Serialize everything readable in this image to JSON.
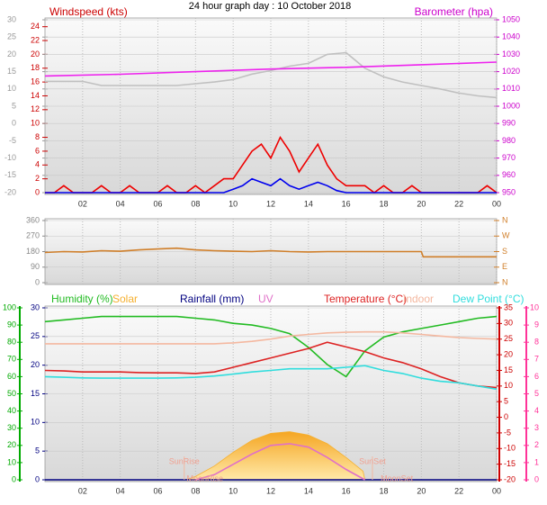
{
  "chart_data": [
    {
      "type": "line",
      "title": "24 hour graph day : 10 October 2018",
      "xlim": [
        0,
        24
      ],
      "xticks": [
        {
          "value": 2,
          "label": "02"
        },
        {
          "value": 4,
          "label": "04"
        },
        {
          "value": 6,
          "label": "06"
        },
        {
          "value": 8,
          "label": "08"
        },
        10,
        12,
        14,
        16,
        18,
        20,
        22,
        {
          "value": 24,
          "label": "00"
        }
      ],
      "xtick_labels": true,
      "axes": {
        "y": {
          "label": "Windspeed (kts)",
          "lim": [
            0,
            25
          ],
          "ticks": [
            0,
            2,
            4,
            6,
            8,
            10,
            12,
            14,
            16,
            18,
            20,
            22,
            24
          ],
          "color": "#cc0000"
        },
        "y2": {
          "label": "Barometer (hpa)",
          "lim": [
            950,
            1050
          ],
          "ticks": [
            950,
            960,
            970,
            980,
            990,
            1000,
            1010,
            1020,
            1030,
            1040,
            1050
          ],
          "color": "#cc00cc"
        },
        "y3": {
          "lim": [
            -20,
            30
          ],
          "ticks": [
            -20,
            -15,
            -10,
            -5,
            0,
            5,
            10,
            15,
            20,
            25,
            30
          ],
          "color": "#999999"
        }
      },
      "grid_axis": "y3",
      "series": [
        {
          "axis": "y3",
          "color": "#c0c0c0",
          "x": [
            0,
            1,
            2,
            3,
            4,
            5,
            6,
            7,
            8,
            9,
            10,
            11,
            12,
            13,
            14,
            15,
            16,
            17,
            18,
            19,
            20,
            21,
            22,
            23,
            24
          ],
          "values": [
            12.2,
            12.2,
            12.2,
            11,
            11,
            11,
            11,
            11,
            11.5,
            12,
            12.7,
            14.3,
            15.3,
            16.6,
            17.4,
            20,
            20.5,
            16,
            13.5,
            12,
            11,
            10,
            8.8,
            8,
            7.5
          ]
        },
        {
          "axis": "y2",
          "color": "#ee22ee",
          "x": [
            0,
            4,
            8,
            12,
            16,
            20,
            24
          ],
          "values": [
            1017.5,
            1018.5,
            1020,
            1021.5,
            1022.5,
            1024,
            1025.5
          ]
        },
        {
          "axis": "y",
          "color": "#ee0000",
          "x": [
            0,
            0.5,
            1,
            1.5,
            2,
            2.5,
            3,
            3.5,
            4,
            4.5,
            5,
            5.5,
            6,
            6.5,
            7,
            7.5,
            8,
            8.5,
            9,
            9.5,
            10,
            10.5,
            11,
            11.5,
            12,
            12.5,
            13,
            13.5,
            14,
            14.5,
            15,
            15.5,
            16,
            16.5,
            17,
            17.5,
            18,
            18.5,
            19,
            19.5,
            20,
            20.5,
            21,
            21.5,
            22,
            22.5,
            23,
            23.5,
            24
          ],
          "values": [
            0,
            0,
            1,
            0,
            0,
            0,
            1,
            0,
            0,
            1,
            0,
            0,
            0,
            1,
            0,
            0,
            1,
            0,
            1,
            2,
            2,
            4,
            6,
            7,
            5,
            8,
            6,
            3,
            5,
            7,
            4,
            2,
            1,
            1,
            1,
            0,
            1,
            0,
            0,
            1,
            0,
            0,
            0,
            0,
            0,
            0,
            0,
            1,
            0
          ]
        },
        {
          "axis": "y",
          "color": "#0000ee",
          "x": [
            0,
            0.5,
            1,
            1.5,
            2,
            2.5,
            3,
            3.5,
            4,
            4.5,
            5,
            5.5,
            6,
            6.5,
            7,
            7.5,
            8,
            8.5,
            9,
            9.5,
            10,
            10.5,
            11,
            11.5,
            12,
            12.5,
            13,
            13.5,
            14,
            14.5,
            15,
            15.5,
            16,
            16.5,
            17,
            17.5,
            18,
            18.5,
            19,
            19.5,
            20,
            20.5,
            21,
            21.5,
            22,
            22.5,
            23,
            23.5,
            24
          ],
          "values": [
            0,
            0,
            0,
            0,
            0,
            0,
            0,
            0,
            0,
            0,
            0,
            0,
            0,
            0,
            0,
            0,
            0,
            0,
            0,
            0,
            0.5,
            1,
            2,
            1.5,
            1,
            2,
            1,
            0.5,
            1,
            1.5,
            1,
            0.3,
            0,
            0,
            0,
            0,
            0,
            0,
            0,
            0,
            0,
            0,
            0,
            0,
            0,
            0,
            0,
            0,
            0
          ]
        }
      ]
    },
    {
      "type": "line",
      "xlim": [
        0,
        24
      ],
      "xticks": [
        2,
        4,
        6,
        8,
        10,
        12,
        14,
        16,
        18,
        20,
        22,
        24
      ],
      "xtick_labels": false,
      "axes": {
        "y": {
          "lim": [
            0,
            360
          ],
          "ticks": [
            0,
            90,
            180,
            270,
            360
          ],
          "color": "#888888"
        },
        "y2": {
          "lim": [
            0,
            360
          ],
          "ticks": [
            {
              "value": 0,
              "label": "N"
            },
            {
              "value": 90,
              "label": "E"
            },
            {
              "value": 180,
              "label": "S"
            },
            {
              "value": 270,
              "label": "W"
            },
            {
              "value": 360,
              "label": "N"
            }
          ],
          "color": "#d07f2a"
        }
      },
      "grid_axis": "y",
      "series": [
        {
          "axis": "y",
          "color": "#d07f2a",
          "x": [
            0,
            1,
            2,
            3,
            4,
            5,
            6,
            7,
            8,
            9,
            10,
            11,
            12,
            13,
            14,
            15,
            20,
            20.1,
            24
          ],
          "values": [
            175,
            180,
            178,
            185,
            182,
            190,
            195,
            200,
            190,
            185,
            182,
            180,
            185,
            180,
            178,
            180,
            180,
            150,
            150
          ]
        }
      ]
    },
    {
      "type": "line",
      "xlim": [
        0,
        24
      ],
      "xticks": [
        {
          "value": 2,
          "label": "02"
        },
        {
          "value": 4,
          "label": "04"
        },
        {
          "value": 6,
          "label": "06"
        },
        {
          "value": 8,
          "label": "08"
        },
        10,
        12,
        14,
        16,
        18,
        20,
        22,
        {
          "value": 24,
          "label": "00"
        }
      ],
      "xtick_labels": true,
      "axes": {
        "y": {
          "lim": [
            0,
            100
          ],
          "ticks": [
            0,
            10,
            20,
            30,
            40,
            50,
            60,
            70,
            80,
            90,
            100
          ],
          "color": "#00aa00"
        },
        "y2": {
          "lim": [
            0,
            30
          ],
          "ticks": [
            0,
            5,
            10,
            15,
            20,
            25,
            30
          ],
          "color": "#000080"
        },
        "y3": {
          "lim": [
            -20,
            35
          ],
          "ticks": [
            -20,
            -15,
            -10,
            -5,
            0,
            5,
            10,
            15,
            20,
            25,
            30,
            35
          ],
          "color": "#cc0000"
        },
        "y4": {
          "lim": [
            0,
            10
          ],
          "ticks": [
            0,
            1,
            2,
            3,
            4,
            5,
            6,
            7,
            8,
            9,
            10
          ],
          "color": "#ff3399"
        }
      },
      "grid_axis": "y2",
      "series": [
        {
          "name": "Humidity (%)",
          "axis": "y",
          "color": "#22bb22",
          "x": [
            0,
            1,
            2,
            3,
            4,
            5,
            6,
            7,
            8,
            9,
            10,
            11,
            12,
            13,
            14,
            15,
            16,
            17,
            18,
            19,
            20,
            21,
            22,
            23,
            24
          ],
          "values": [
            92,
            93,
            94,
            95,
            95,
            95,
            95,
            95,
            94,
            93,
            91,
            90,
            88,
            85,
            77,
            67,
            60,
            75,
            83,
            86,
            88,
            90,
            92,
            94,
            95
          ]
        },
        {
          "name": "Solar",
          "axis": "y4",
          "color": "#f5b030",
          "area": true,
          "x": [
            7.5,
            8,
            9,
            10,
            11,
            12,
            13,
            14,
            15,
            16,
            16.9,
            17
          ],
          "values": [
            0,
            0.2,
            0.8,
            1.6,
            2.3,
            2.7,
            2.8,
            2.6,
            2.1,
            1.3,
            0.5,
            0
          ]
        },
        {
          "name": "Rainfall (mm)",
          "axis": "y2",
          "color": "#000080",
          "x": [
            0,
            24
          ],
          "values": [
            0,
            0
          ]
        },
        {
          "name": "UV",
          "axis": "y4",
          "color": "#e070c8",
          "x": [
            8,
            9,
            10,
            11,
            12,
            13,
            14,
            15,
            16,
            17
          ],
          "values": [
            0,
            0.3,
            0.9,
            1.5,
            2.0,
            2.1,
            1.9,
            1.3,
            0.6,
            0
          ]
        },
        {
          "name": "Temperature (°C)",
          "axis": "y3",
          "color": "#dd2222",
          "x": [
            0,
            1,
            2,
            3,
            4,
            5,
            6,
            7,
            8,
            9,
            10,
            11,
            12,
            13,
            14,
            15,
            16,
            17,
            18,
            19,
            20,
            21,
            22,
            23,
            24
          ],
          "values": [
            15,
            14.8,
            14.5,
            14.5,
            14.5,
            14.3,
            14.2,
            14.2,
            14,
            14.5,
            16,
            17.5,
            19,
            20.5,
            22,
            24,
            22.5,
            21,
            19,
            17.5,
            15.5,
            13,
            11,
            10,
            9.5
          ]
        },
        {
          "name": "Indoor",
          "axis": "y3",
          "color": "#f4b8a0",
          "x": [
            0,
            1,
            2,
            3,
            4,
            5,
            6,
            7,
            8,
            9,
            10,
            11,
            12,
            13,
            14,
            15,
            16,
            17,
            18,
            19,
            20,
            21,
            22,
            23,
            24
          ],
          "values": [
            23.5,
            23.5,
            23.5,
            23.5,
            23.5,
            23.5,
            23.5,
            23.5,
            23.5,
            23.5,
            23.8,
            24.3,
            25,
            26,
            26.5,
            27,
            27.2,
            27.3,
            27.3,
            27,
            26.5,
            26,
            25.5,
            25.2,
            25
          ]
        },
        {
          "name": "Dew Point (°C)",
          "axis": "y3",
          "color": "#30dddd",
          "x": [
            0,
            1,
            2,
            3,
            4,
            5,
            6,
            7,
            8,
            9,
            10,
            11,
            12,
            13,
            14,
            15,
            16,
            17,
            18,
            19,
            20,
            21,
            22,
            23,
            24
          ],
          "values": [
            13,
            12.8,
            12.6,
            12.5,
            12.5,
            12.5,
            12.5,
            12.6,
            12.8,
            13.2,
            13.8,
            14.5,
            15,
            15.5,
            15.5,
            15.5,
            16,
            16.5,
            15,
            14,
            12.5,
            11.5,
            11,
            10,
            9
          ]
        }
      ],
      "annotations": [
        {
          "text": "SunRise",
          "x": 7.4
        },
        {
          "text": "SunSet",
          "x": 17.4
        },
        {
          "text": "MoonRise",
          "x": 8.5
        },
        {
          "text": "MoonSet",
          "x": 18.7
        }
      ]
    }
  ]
}
